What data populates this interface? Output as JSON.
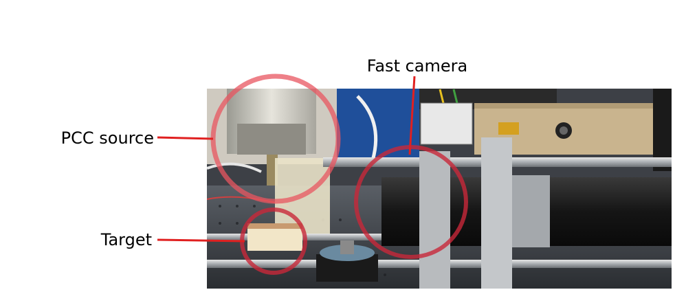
{
  "labels": {
    "fast_camera": "Fast camera",
    "pcc_source": "PCC source",
    "target": "Target"
  },
  "colors": {
    "callout_line": "#e02020",
    "callout_circle": "#d0303a"
  }
}
